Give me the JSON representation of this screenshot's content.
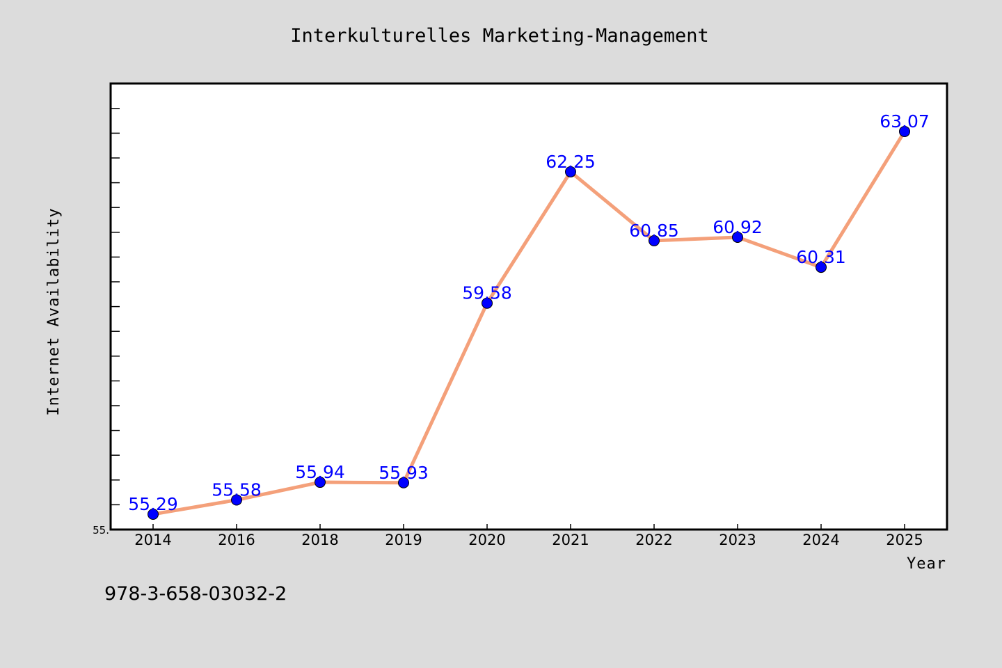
{
  "chart_data": {
    "type": "line",
    "title": "Interkulturelles Marketing-Management",
    "xlabel": "Year",
    "ylabel": "Internet Availability",
    "categories": [
      "2014",
      "2016",
      "2018",
      "2019",
      "2020",
      "2021",
      "2022",
      "2023",
      "2024",
      "2025"
    ],
    "series": [
      {
        "values": [
          55.29,
          55.58,
          55.94,
          55.93,
          59.58,
          62.25,
          60.85,
          60.92,
          60.31,
          63.07
        ],
        "labels": [
          "55.29",
          "55.58",
          "55.94",
          "55.93",
          "59.58",
          "62.25",
          "60.85",
          "60.92",
          "60.31",
          "63.07"
        ],
        "line_color": "#f4a07a",
        "marker_color": "#0000ff"
      }
    ],
    "ylim": [
      55.0,
      64.0
    ],
    "y_tick_label": "55.",
    "grid": false,
    "legend": "none"
  },
  "footer_text": "978-3-658-03032-2",
  "colors": {
    "background": "#dcdcdc",
    "plot_background": "#ffffff",
    "data_label": "#0000ff"
  }
}
